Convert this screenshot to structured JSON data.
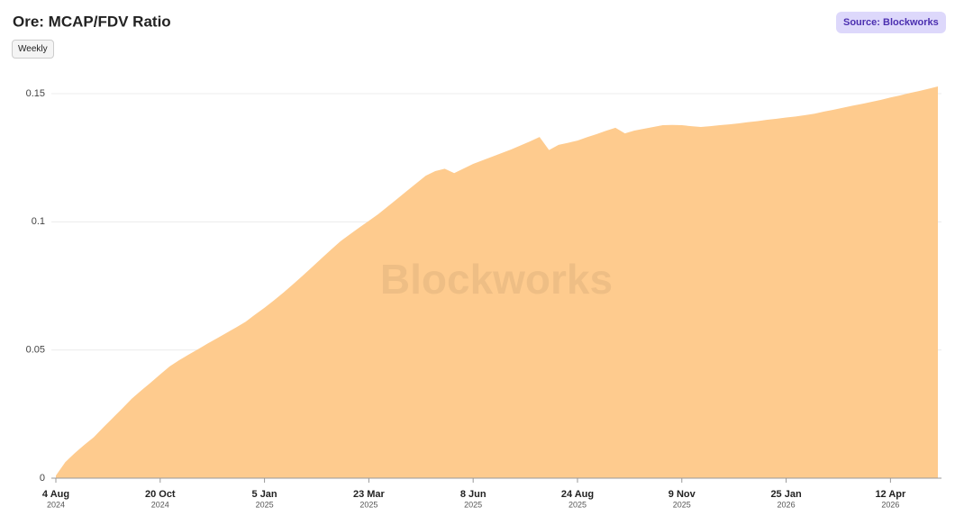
{
  "chart_data": {
    "type": "area",
    "title": "Ore: MCAP/FDV Ratio",
    "frequency": "Weekly",
    "source": "Source: Blockworks",
    "watermark": "Blockworks",
    "color": "#fecb8e",
    "grid": true,
    "x": [
      "2024-08-04",
      "2024-08-11",
      "2024-08-18",
      "2024-08-25",
      "2024-09-01",
      "2024-09-08",
      "2024-09-15",
      "2024-09-22",
      "2024-09-29",
      "2024-10-06",
      "2024-10-13",
      "2024-10-20",
      "2024-10-27",
      "2024-11-03",
      "2024-11-10",
      "2024-11-17",
      "2024-11-24",
      "2024-12-01",
      "2024-12-08",
      "2024-12-15",
      "2024-12-22",
      "2024-12-29",
      "2025-01-05",
      "2025-01-12",
      "2025-01-19",
      "2025-01-26",
      "2025-02-02",
      "2025-02-09",
      "2025-02-16",
      "2025-02-23",
      "2025-03-02",
      "2025-03-09",
      "2025-03-16",
      "2025-03-23",
      "2025-03-30",
      "2025-04-06",
      "2025-04-13",
      "2025-04-20",
      "2025-04-27",
      "2025-05-04",
      "2025-05-11",
      "2025-05-18",
      "2025-05-25",
      "2025-06-01",
      "2025-06-08",
      "2025-06-15",
      "2025-06-22",
      "2025-06-29",
      "2025-07-06",
      "2025-07-13",
      "2025-07-20",
      "2025-07-27",
      "2025-08-03",
      "2025-08-10",
      "2025-08-17",
      "2025-08-24",
      "2025-08-31",
      "2025-09-07",
      "2025-09-14",
      "2025-09-21",
      "2025-09-28",
      "2025-10-05",
      "2025-10-12",
      "2025-10-19",
      "2025-10-26",
      "2025-11-02",
      "2025-11-09",
      "2025-11-16",
      "2025-11-23",
      "2025-11-30",
      "2025-12-07",
      "2025-12-14",
      "2025-12-21",
      "2025-12-28",
      "2026-01-04",
      "2026-01-11",
      "2026-01-18",
      "2026-01-25",
      "2026-02-01",
      "2026-02-08",
      "2026-02-15",
      "2026-02-22",
      "2026-03-01",
      "2026-03-08",
      "2026-03-15",
      "2026-03-22",
      "2026-03-29",
      "2026-04-05",
      "2026-04-12",
      "2026-04-19",
      "2026-04-26",
      "2026-05-03",
      "2026-05-10",
      "2026-05-17"
    ],
    "values": [
      0.001,
      0.0063,
      0.0098,
      0.013,
      0.016,
      0.0198,
      0.0235,
      0.0272,
      0.031,
      0.0342,
      0.0373,
      0.0405,
      0.0436,
      0.046,
      0.0482,
      0.0503,
      0.0525,
      0.0546,
      0.0567,
      0.0588,
      0.061,
      0.0638,
      0.0665,
      0.0694,
      0.0724,
      0.0756,
      0.0789,
      0.0823,
      0.0857,
      0.0891,
      0.0924,
      0.0951,
      0.0978,
      0.1004,
      0.103,
      0.106,
      0.109,
      0.112,
      0.115,
      0.118,
      0.1198,
      0.1207,
      0.119,
      0.1208,
      0.1226,
      0.124,
      0.1254,
      0.1268,
      0.1282,
      0.1298,
      0.1314,
      0.1331,
      0.128,
      0.13,
      0.1308,
      0.1317,
      0.133,
      0.1342,
      0.1355,
      0.1367,
      0.1345,
      0.1356,
      0.1363,
      0.137,
      0.1377,
      0.1378,
      0.1377,
      0.1373,
      0.137,
      0.1373,
      0.1377,
      0.138,
      0.1384,
      0.1389,
      0.1393,
      0.1398,
      0.1402,
      0.1407,
      0.1411,
      0.1416,
      0.1422,
      0.143,
      0.1437,
      0.1445,
      0.1453,
      0.146,
      0.1468,
      0.1476,
      0.1485,
      0.1493,
      0.1502,
      0.151,
      0.1519,
      0.1528
    ],
    "xlim": [
      "2024-08-04",
      "2026-05-17"
    ],
    "xticks": [
      {
        "value": "2024-08-04",
        "label": "4 Aug",
        "year": "2024"
      },
      {
        "value": "2024-10-20",
        "label": "20 Oct",
        "year": "2024"
      },
      {
        "value": "2025-01-05",
        "label": "5 Jan",
        "year": "2025"
      },
      {
        "value": "2025-03-23",
        "label": "23 Mar",
        "year": "2025"
      },
      {
        "value": "2025-06-08",
        "label": "8 Jun",
        "year": "2025"
      },
      {
        "value": "2025-08-24",
        "label": "24 Aug",
        "year": "2025"
      },
      {
        "value": "2025-11-09",
        "label": "9 Nov",
        "year": "2025"
      },
      {
        "value": "2026-01-25",
        "label": "25 Jan",
        "year": "2026"
      },
      {
        "value": "2026-04-12",
        "label": "12 Apr",
        "year": "2026"
      }
    ],
    "ylim": [
      0,
      0.15
    ],
    "yticks": [
      0,
      0.05,
      0.1,
      0.15
    ]
  }
}
